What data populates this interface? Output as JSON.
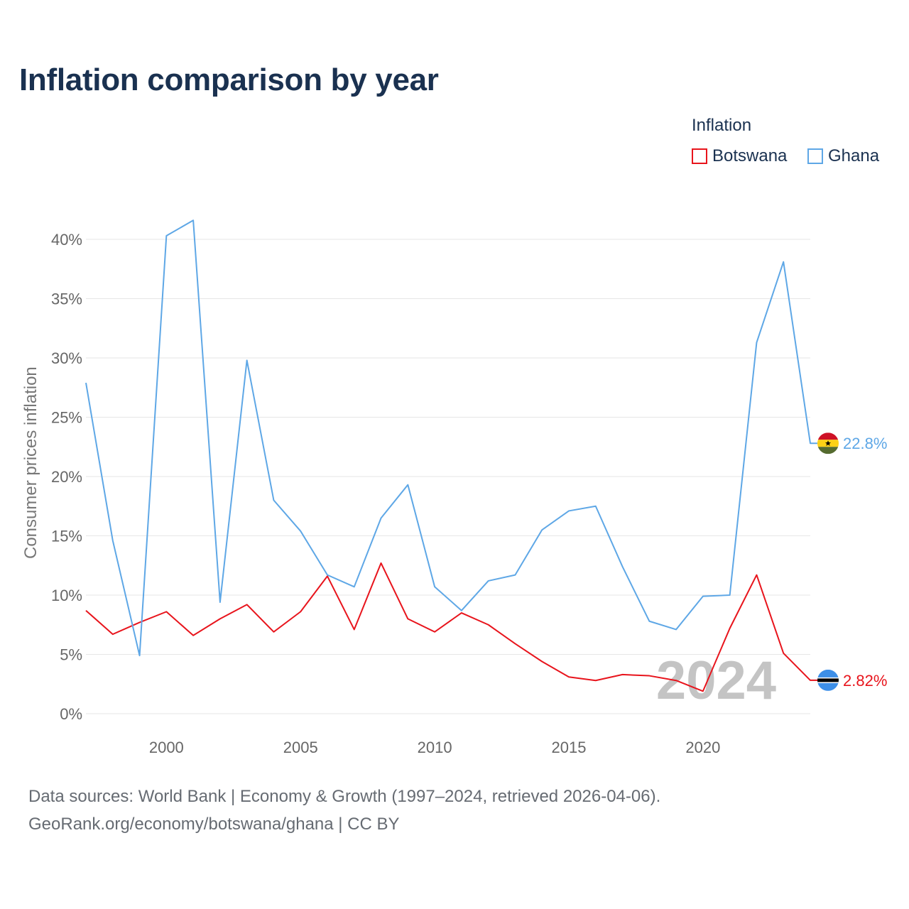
{
  "title": "Inflation comparison by year",
  "legend": {
    "title": "Inflation",
    "items": [
      {
        "label": "Botswana",
        "color": "#e8141c"
      },
      {
        "label": "Ghana",
        "color": "#5ea7e6"
      }
    ]
  },
  "chart_data": {
    "type": "line",
    "title": "Inflation comparison by year",
    "xlabel": "",
    "ylabel": "Consumer prices inflation",
    "x": [
      1997,
      1998,
      1999,
      2000,
      2001,
      2002,
      2003,
      2004,
      2005,
      2006,
      2007,
      2008,
      2009,
      2010,
      2011,
      2012,
      2013,
      2014,
      2015,
      2016,
      2017,
      2018,
      2019,
      2020,
      2021,
      2022,
      2023,
      2024
    ],
    "xlim": [
      1997,
      2024
    ],
    "x_ticks": [
      2000,
      2005,
      2010,
      2015,
      2020
    ],
    "ylim": [
      0,
      40
    ],
    "y_ticks": [
      0,
      5,
      10,
      15,
      20,
      25,
      30,
      35,
      40
    ],
    "y_tick_labels": [
      "0%",
      "5%",
      "10%",
      "15%",
      "20%",
      "25%",
      "30%",
      "35%",
      "40%"
    ],
    "grid": true,
    "year_watermark": "2024",
    "series": [
      {
        "name": "Botswana",
        "color": "#e8141c",
        "end_label": "2.82%",
        "values": [
          8.7,
          6.7,
          7.7,
          8.6,
          6.6,
          8.0,
          9.2,
          6.9,
          8.6,
          11.6,
          7.1,
          12.7,
          8.0,
          6.9,
          8.5,
          7.5,
          5.9,
          4.4,
          3.1,
          2.8,
          3.3,
          3.2,
          2.8,
          1.9,
          7.2,
          11.7,
          5.1,
          2.82
        ]
      },
      {
        "name": "Ghana",
        "color": "#5ea7e6",
        "end_label": "22.8%",
        "values": [
          27.9,
          14.6,
          4.9,
          40.3,
          41.6,
          9.4,
          29.8,
          18.0,
          15.4,
          11.7,
          10.7,
          16.5,
          19.3,
          10.7,
          8.7,
          11.2,
          11.7,
          15.5,
          17.1,
          17.5,
          12.4,
          7.8,
          7.1,
          9.9,
          10.0,
          31.3,
          38.1,
          22.8
        ]
      }
    ]
  },
  "footer": {
    "line1": "Data sources: World Bank | Economy & Growth (1997–2024, retrieved 2026-04-06).",
    "line2": "GeoRank.org/economy/botswana/ghana | CC BY"
  }
}
